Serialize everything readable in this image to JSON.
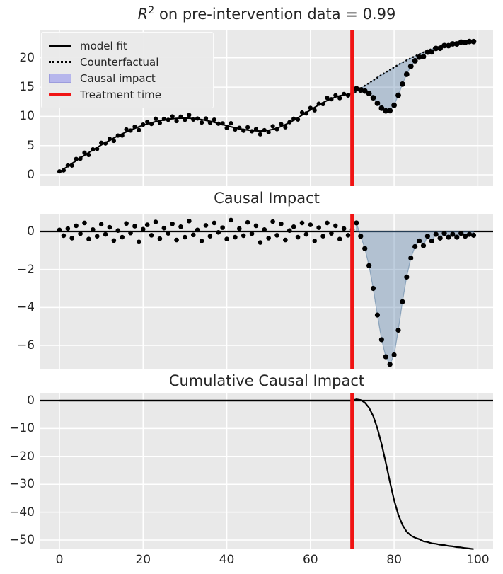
{
  "figure": {
    "background": "#ffffff",
    "panel_background": "#e9e9e9",
    "grid_color": "#ffffff",
    "text_color": "#262626",
    "treatment_color": "#f01414",
    "fill_color": "#4e79a7",
    "fill_opacity": 0.35,
    "fill_edge": "#3f6a94",
    "legend_patch_fill": "#b6b6ec",
    "legend_patch_edge": "#9c9cdd",
    "line_color": "#000000",
    "dot_color": "#000000"
  },
  "chart_data": [
    {
      "type": "line+scatter+area",
      "title": {
        "math": "R",
        "sup": "2",
        "rest": " on pre-intervention data = 0.99"
      },
      "legend": [
        "model fit",
        "Counterfactual",
        "Causal impact",
        "Treatment time"
      ],
      "treatment_time": 70,
      "xlim": [
        -4.6,
        103.7
      ],
      "ylim": [
        -1.9,
        24.7
      ],
      "xticks": [
        0,
        20,
        40,
        60,
        80,
        100
      ],
      "xtick_labels": [
        "0",
        "20",
        "40",
        "60",
        "80",
        "100"
      ],
      "yticks": [
        0,
        5,
        10,
        15,
        20
      ],
      "ytick_labels": [
        "0",
        "5",
        "10",
        "15",
        "20"
      ],
      "series": {
        "model_fit": {
          "x0": 0,
          "y": [
            0.5,
            0.98,
            1.46,
            1.94,
            2.41,
            2.88,
            3.34,
            3.8,
            4.24,
            4.68,
            5.1,
            5.51,
            5.91,
            6.29,
            6.66,
            7.01,
            7.34,
            7.65,
            7.94,
            8.22,
            8.47,
            8.7,
            8.9,
            9.09,
            9.25,
            9.39,
            9.5,
            9.59,
            9.65,
            9.69,
            9.7,
            9.68,
            9.63,
            9.55,
            9.44,
            9.31,
            9.15,
            8.98,
            8.79,
            8.6,
            8.41,
            8.22,
            8.05,
            7.89,
            7.76,
            7.65,
            7.57,
            7.52,
            7.5,
            7.53,
            7.63,
            7.78,
            8.0,
            8.27,
            8.59,
            8.95,
            9.34,
            9.76,
            10.2,
            10.65,
            11.1,
            11.54,
            11.96,
            12.35,
            12.71,
            13.03,
            13.3,
            13.52,
            13.67,
            13.77,
            13.8
          ]
        },
        "observed_pre": {
          "x0": 0,
          "y": [
            0.58,
            0.76,
            1.61,
            1.59,
            2.71,
            2.76,
            3.79,
            3.4,
            4.34,
            4.43,
            5.48,
            5.36,
            6.13,
            5.81,
            6.71,
            6.71,
            7.76,
            7.57,
            8.22,
            7.67,
            8.59,
            9.05,
            8.7,
            9.59,
            8.87,
            9.57,
            9.4,
            9.99,
            9.2,
            9.94,
            9.4,
            10.23,
            9.45,
            9.63,
            8.94,
            9.63,
            8.9,
            9.43,
            8.74,
            8.8,
            8.01,
            8.82,
            7.75,
            8.04,
            7.54,
            8.13,
            7.45,
            7.82,
            6.92,
            7.63,
            7.28,
            8.3,
            7.8,
            8.67,
            8.14,
            9.0,
            9.59,
            9.46,
            10.65,
            10.5,
            11.45,
            11.04,
            12.16,
            12.1,
            13.16,
            12.93,
            13.6,
            13.12,
            13.82,
            13.57,
            13.9
          ]
        },
        "counterfactual": {
          "x0": 70,
          "y": [
            13.8,
            14.28,
            14.76,
            15.24,
            15.71,
            16.18,
            16.64,
            17.1,
            17.54,
            17.98,
            18.4,
            18.81,
            19.21,
            19.59,
            19.95,
            20.3,
            20.63,
            20.95,
            21.24,
            21.52,
            21.77,
            22.0,
            22.21,
            22.39,
            22.55,
            22.69,
            22.8,
            22.89,
            22.95,
            22.99
          ]
        },
        "observed_post": {
          "x0": 71,
          "y": [
            14.73,
            14.51,
            14.34,
            13.91,
            13.18,
            12.24,
            11.4,
            10.94,
            10.98,
            11.9,
            13.61,
            15.51,
            17.19,
            18.55,
            19.5,
            20.13,
            20.2,
            20.99,
            21.02,
            21.62,
            21.65,
            22.11,
            22.09,
            22.4,
            22.39,
            22.7,
            22.64,
            22.8,
            22.79
          ]
        }
      }
    },
    {
      "type": "scatter+area",
      "title": "Causal Impact",
      "treatment_time": 70,
      "ylim": [
        -7.25,
        0.93
      ],
      "yticks": [
        0,
        -2,
        -4,
        -6
      ],
      "ytick_labels": [
        "0",
        "−2",
        "−4",
        "−6"
      ],
      "series": {
        "impact_pre": {
          "x0": 0,
          "y": [
            0.08,
            -0.22,
            0.15,
            -0.35,
            0.3,
            -0.12,
            0.45,
            -0.4,
            0.1,
            -0.25,
            0.38,
            -0.15,
            0.22,
            -0.48,
            0.05,
            -0.3,
            0.42,
            -0.08,
            0.28,
            -0.55,
            0.12,
            0.35,
            -0.2,
            0.5,
            -0.38,
            0.18,
            -0.1,
            0.4,
            -0.45,
            0.25,
            -0.3,
            0.55,
            -0.18,
            0.08,
            -0.5,
            0.32,
            -0.25,
            0.45,
            -0.05,
            0.2,
            -0.4,
            0.6,
            -0.3,
            0.15,
            -0.22,
            0.48,
            -0.12,
            0.3,
            -0.58,
            0.1,
            -0.35,
            0.52,
            -0.2,
            0.4,
            -0.45,
            0.05,
            0.25,
            -0.3,
            0.45,
            -0.15,
            0.35,
            -0.5,
            0.2,
            -0.25,
            0.45,
            -0.1,
            0.3,
            -0.4,
            0.15,
            -0.2,
            0.1
          ]
        },
        "impact_post": {
          "x0": 71,
          "y": [
            0.45,
            -0.25,
            -0.9,
            -1.8,
            -3.0,
            -4.4,
            -5.7,
            -6.6,
            -7.0,
            -6.5,
            -5.2,
            -3.7,
            -2.4,
            -1.4,
            -0.8,
            -0.5,
            -0.75,
            -0.25,
            -0.5,
            -0.15,
            -0.35,
            -0.1,
            -0.3,
            -0.15,
            -0.3,
            -0.1,
            -0.25,
            -0.15,
            -0.2
          ]
        }
      }
    },
    {
      "type": "line",
      "title": "Cumulative Causal Impact",
      "treatment_time": 70,
      "ylim": [
        -53.6,
        2.8
      ],
      "yticks": [
        0,
        -10,
        -20,
        -30,
        -40,
        -50
      ],
      "ytick_labels": [
        "0",
        "−10",
        "−20",
        "−30",
        "−40",
        "−50"
      ],
      "series": {
        "cumulative": {
          "x": [
            0,
            70,
            71,
            72,
            73,
            74,
            75,
            76,
            77,
            78,
            79,
            80,
            81,
            82,
            83,
            84,
            85,
            86,
            87,
            88,
            89,
            90,
            91,
            92,
            93,
            94,
            95,
            96,
            97,
            98,
            99
          ],
          "y": [
            0,
            0,
            0.45,
            0.2,
            -0.7,
            -2.5,
            -5.5,
            -9.9,
            -15.6,
            -22.2,
            -29.2,
            -35.7,
            -40.9,
            -44.6,
            -47.0,
            -48.4,
            -49.2,
            -49.7,
            -50.45,
            -50.7,
            -51.2,
            -51.35,
            -51.7,
            -51.8,
            -52.1,
            -52.25,
            -52.55,
            -52.65,
            -52.9,
            -53.05,
            -53.25
          ]
        }
      }
    }
  ]
}
